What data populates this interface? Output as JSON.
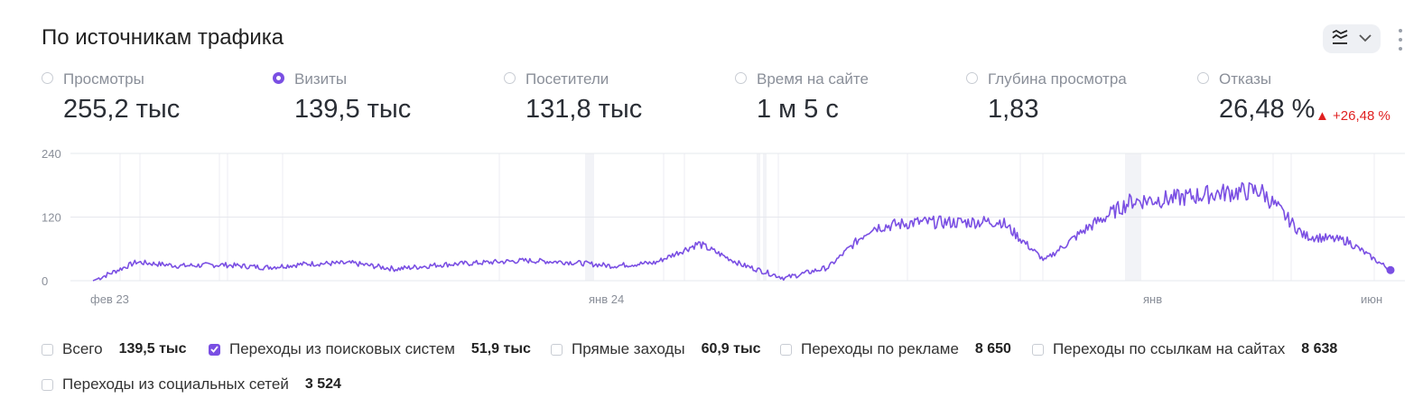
{
  "header": {
    "title": "По источникам трафика",
    "chart_type_icon": "stacked-lines-icon",
    "dropdown_icon": "chevron-down-icon",
    "more_icon": "more-vertical-icon"
  },
  "metrics": [
    {
      "label": "Просмотры",
      "value": "255,2 тыс",
      "selected": false
    },
    {
      "label": "Визиты",
      "value": "139,5 тыс",
      "selected": true
    },
    {
      "label": "Посетители",
      "value": "131,8 тыс",
      "selected": false
    },
    {
      "label": "Время на сайте",
      "value": "1 м 5 с",
      "selected": false
    },
    {
      "label": "Глубина просмотра",
      "value": "1,83",
      "selected": false
    },
    {
      "label": "Отказы",
      "value": "26,48 %",
      "selected": false,
      "delta": "▲ +26,48 %",
      "delta_color": "#e02020"
    }
  ],
  "legend": [
    {
      "name": "Всего",
      "value": "139,5 тыс",
      "checked": false
    },
    {
      "name": "Переходы из поисковых систем",
      "value": "51,9 тыс",
      "checked": true
    },
    {
      "name": "Прямые заходы",
      "value": "60,9 тыс",
      "checked": false
    },
    {
      "name": "Переходы по рекламе",
      "value": "8 650",
      "checked": false
    },
    {
      "name": "Переходы по ссылкам на сайтах",
      "value": "8 638",
      "checked": false
    },
    {
      "name": "Переходы из социальных сетей",
      "value": "3 524",
      "checked": false
    }
  ],
  "colors": {
    "accent": "#7a4fe3",
    "grid": "#e6e8ee",
    "axis_text": "#8a8f99"
  },
  "chart_data": {
    "type": "line",
    "ylim": [
      0,
      240
    ],
    "yticks": [
      0,
      120,
      240
    ],
    "xtick_labels": [
      "фев 23",
      "янв 24",
      "янв",
      "июн"
    ],
    "grid": true,
    "series": [
      {
        "name": "Переходы из поисковых систем",
        "x": [
          "2023-01",
          "2023-02",
          "2023-03",
          "2023-04",
          "2023-05",
          "2023-06",
          "2023-07",
          "2023-08",
          "2023-09",
          "2023-10",
          "2023-11",
          "2023-12",
          "2024-01",
          "2024-02",
          "2024-03",
          "2024-04",
          "2024-05",
          "2024-06",
          "2024-07",
          "2024-08",
          "2024-09",
          "2024-10",
          "2024-11",
          "2024-12",
          "2025-01",
          "2025-02",
          "2025-03",
          "2025-04",
          "2025-05",
          "2025-06",
          "2025-07"
        ],
        "values": [
          0,
          35,
          28,
          30,
          25,
          32,
          33,
          22,
          30,
          34,
          38,
          35,
          28,
          34,
          70,
          30,
          5,
          25,
          100,
          110,
          110,
          112,
          38,
          100,
          150,
          155,
          165,
          170,
          85,
          75,
          20
        ]
      }
    ]
  }
}
